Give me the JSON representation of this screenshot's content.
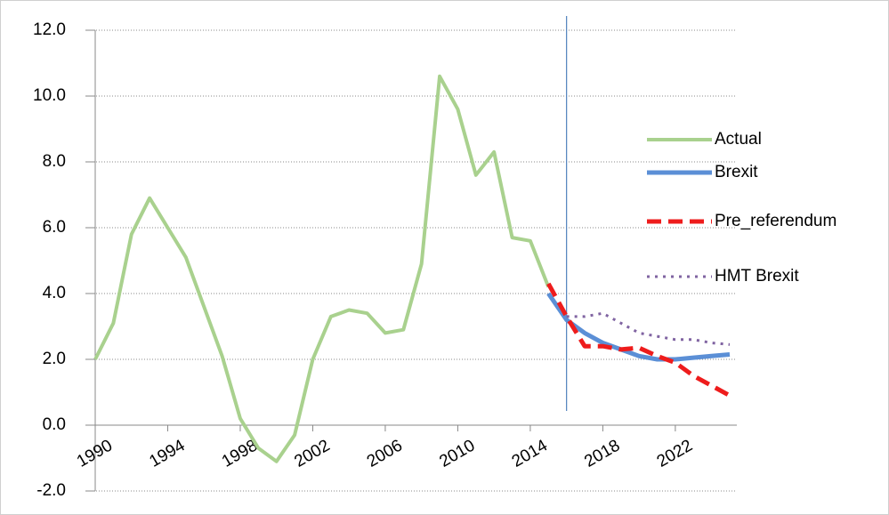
{
  "chart_data": {
    "type": "line",
    "x": [
      1990,
      1991,
      1992,
      1993,
      1994,
      1995,
      1996,
      1997,
      1998,
      1999,
      2000,
      2001,
      2002,
      2003,
      2004,
      2005,
      2006,
      2007,
      2008,
      2009,
      2010,
      2011,
      2012,
      2013,
      2014,
      2015,
      2016,
      2017,
      2018,
      2019,
      2020,
      2021,
      2022,
      2023,
      2024,
      2025
    ],
    "series": [
      {
        "name": "Actual",
        "color": "#a9d18e",
        "dash": "solid",
        "width": 4,
        "values": [
          2.0,
          3.1,
          5.8,
          6.9,
          6.0,
          5.1,
          3.6,
          2.1,
          0.2,
          -0.7,
          -1.1,
          -0.3,
          2.0,
          3.3,
          3.5,
          3.4,
          2.8,
          2.9,
          4.9,
          10.6,
          9.6,
          7.6,
          8.3,
          5.7,
          5.6,
          4.2,
          null,
          null,
          null,
          null,
          null,
          null,
          null,
          null,
          null,
          null
        ]
      },
      {
        "name": "Brexit",
        "color": "#5b8fd6",
        "dash": "solid",
        "width": 5,
        "values": [
          null,
          null,
          null,
          null,
          null,
          null,
          null,
          null,
          null,
          null,
          null,
          null,
          null,
          null,
          null,
          null,
          null,
          null,
          null,
          null,
          null,
          null,
          null,
          null,
          null,
          4.0,
          3.2,
          2.8,
          2.5,
          2.3,
          2.1,
          2.0,
          2.0,
          2.05,
          2.1,
          2.15
        ]
      },
      {
        "name": "Pre_referendum",
        "color": "#ee1c1c",
        "dash": "dashed",
        "width": 5,
        "values": [
          null,
          null,
          null,
          null,
          null,
          null,
          null,
          null,
          null,
          null,
          null,
          null,
          null,
          null,
          null,
          null,
          null,
          null,
          null,
          null,
          null,
          null,
          null,
          null,
          null,
          4.3,
          3.3,
          2.4,
          2.4,
          2.3,
          2.35,
          2.1,
          1.9,
          1.5,
          1.2,
          0.9
        ]
      },
      {
        "name": "HMT Brexit",
        "color": "#8064a2",
        "dash": "dotted",
        "width": 3,
        "values": [
          null,
          null,
          null,
          null,
          null,
          null,
          null,
          null,
          null,
          null,
          null,
          null,
          null,
          null,
          null,
          null,
          null,
          null,
          null,
          null,
          null,
          null,
          null,
          null,
          null,
          null,
          3.3,
          3.3,
          3.4,
          3.1,
          2.8,
          2.7,
          2.6,
          2.6,
          2.5,
          2.45
        ]
      }
    ],
    "vline": 2016,
    "xlim": [
      1990,
      2025
    ],
    "xticks": [
      1990,
      1994,
      1998,
      2002,
      2006,
      2010,
      2014,
      2018,
      2022
    ],
    "ylim": [
      -2,
      12
    ],
    "yticks": [
      {
        "value": -2,
        "label": "-2.0"
      },
      {
        "value": 0,
        "label": "0.0"
      },
      {
        "value": 2,
        "label": "2.0"
      },
      {
        "value": 4,
        "label": "4.0"
      },
      {
        "value": 6,
        "label": "6.0"
      },
      {
        "value": 8,
        "label": "8.0"
      },
      {
        "value": 10,
        "label": "10.0"
      },
      {
        "value": 12,
        "label": "12.0"
      }
    ],
    "grid": true
  }
}
